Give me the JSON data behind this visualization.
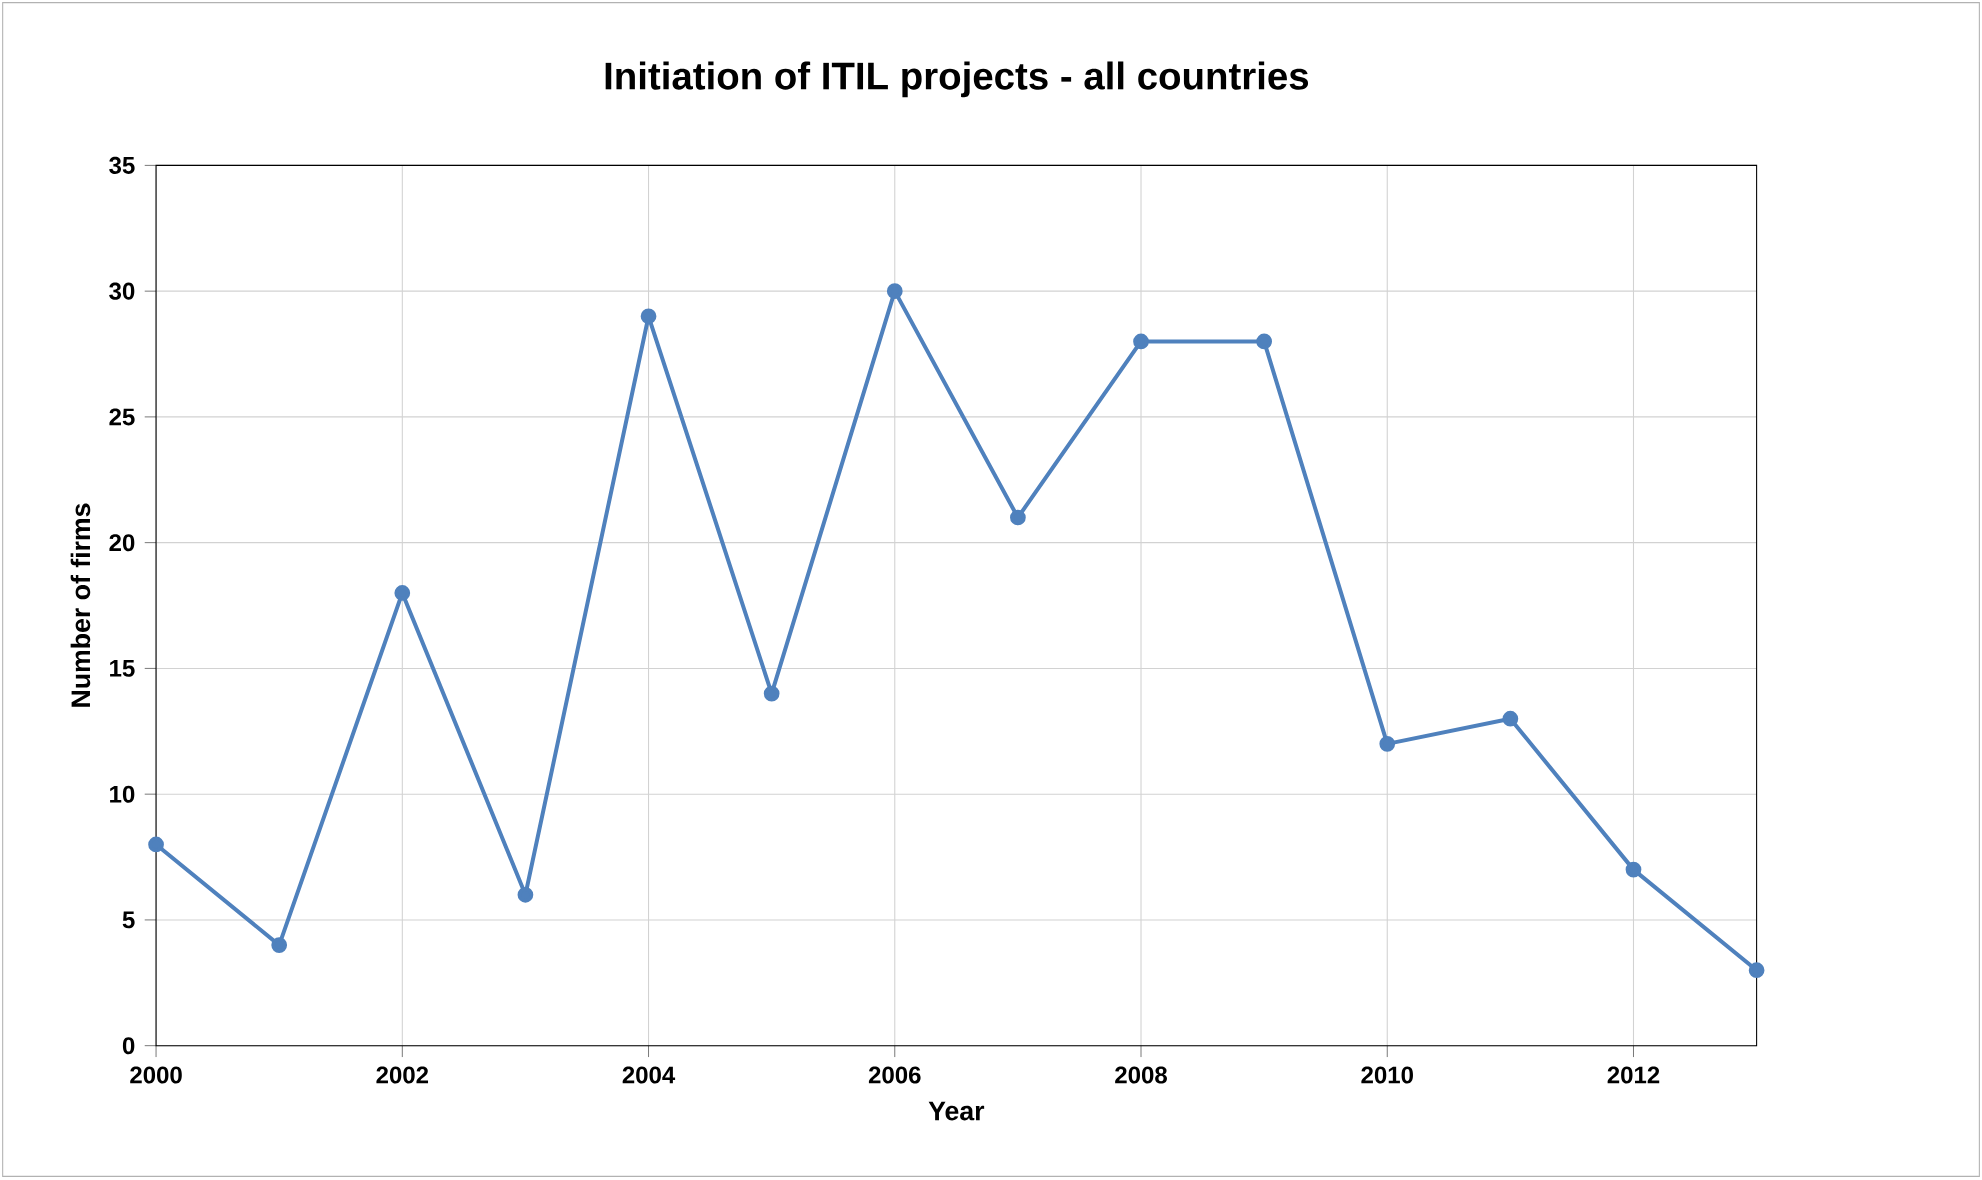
{
  "chart_data": {
    "type": "line",
    "title": "Initiation of ITIL projects - all countries",
    "xlabel": "Year",
    "ylabel": "Number of firms",
    "x": [
      2000,
      2001,
      2002,
      2003,
      2004,
      2005,
      2006,
      2007,
      2008,
      2009,
      2010,
      2011,
      2012,
      2013
    ],
    "series": [
      {
        "color": "#4f81bd",
        "values": [
          8,
          4,
          18,
          6,
          29,
          14,
          30,
          21,
          28,
          28,
          12,
          13,
          7,
          3
        ]
      }
    ],
    "xlim": [
      2000,
      2013
    ],
    "xticks": [
      2000,
      2002,
      2004,
      2006,
      2008,
      2010,
      2012
    ],
    "ylim": [
      0,
      35
    ],
    "yticks": [
      0,
      5,
      10,
      15,
      20,
      25,
      30,
      35
    ],
    "grid": true,
    "marker": "circle",
    "line_style": "solid",
    "legend": false
  }
}
